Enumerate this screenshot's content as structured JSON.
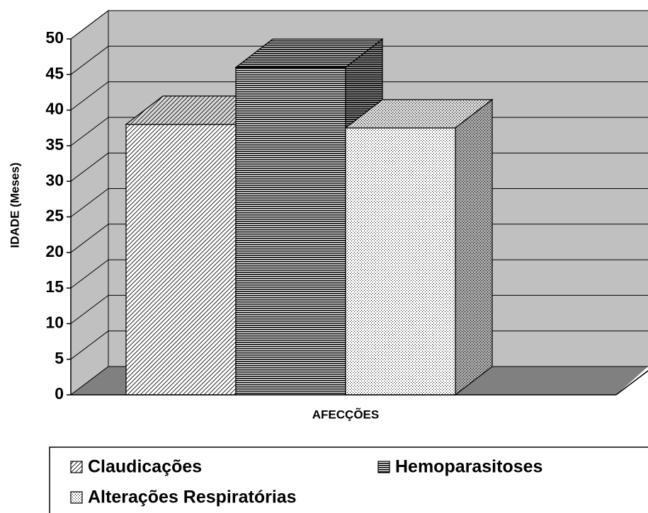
{
  "chart_data": {
    "type": "bar",
    "ylabel": "IDADE (Meses)",
    "xlabel": "AFECÇÕES",
    "categories": [
      null
    ],
    "series": [
      {
        "name": "Claudicações",
        "values": [
          38
        ]
      },
      {
        "name": "Hemoparasitoses",
        "values": [
          46
        ]
      },
      {
        "name": "Alterações Respiratórias",
        "values": [
          37.5
        ]
      }
    ],
    "ylim": [
      0,
      50
    ],
    "yticks": [
      0,
      5,
      10,
      15,
      20,
      25,
      30,
      35,
      40,
      45,
      50
    ],
    "grid": true
  }
}
